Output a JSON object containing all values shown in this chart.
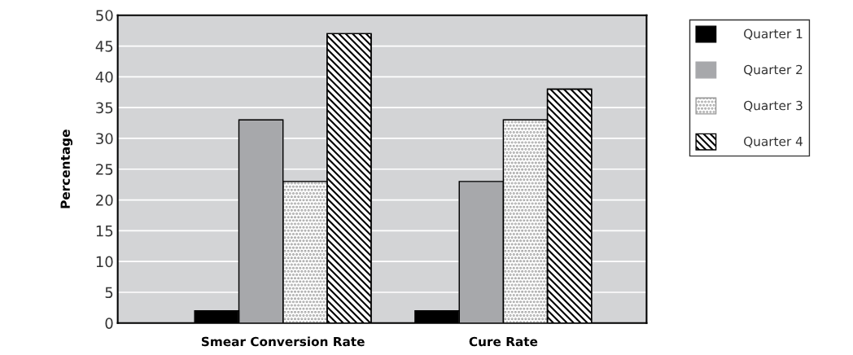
{
  "chart_data": {
    "type": "bar",
    "ylabel": "Percentage",
    "categories": [
      "Smear Conversion Rate",
      "Cure Rate"
    ],
    "series": [
      {
        "name": "Quarter 1",
        "color": "#000000",
        "values": [
          2,
          2
        ]
      },
      {
        "name": "Quarter 2",
        "color": "#a7a8ab",
        "values": [
          33,
          23
        ]
      },
      {
        "name": "Quarter 3",
        "color": "#9a9a9a",
        "values": [
          23,
          33
        ]
      },
      {
        "name": "Quarter 4",
        "color": "#000000",
        "values": [
          47,
          38
        ]
      }
    ],
    "ylim": [
      0,
      50
    ],
    "yticks": [
      0,
      5,
      10,
      15,
      20,
      25,
      30,
      35,
      40,
      45,
      50
    ],
    "grid": "y",
    "legend": "right"
  }
}
